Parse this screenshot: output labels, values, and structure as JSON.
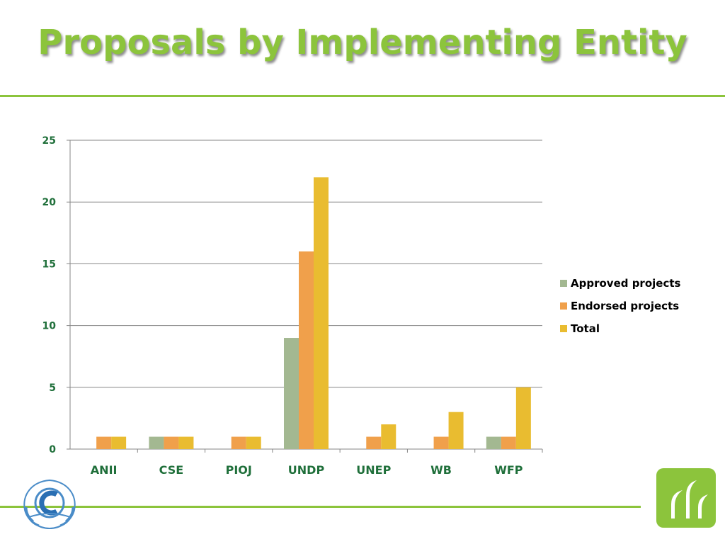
{
  "slide": {
    "title": "Proposals by Implementing Entity",
    "colors": {
      "accent": "#8cc43c"
    }
  },
  "chart_data": {
    "type": "bar",
    "title": "",
    "xlabel": "",
    "ylabel": "",
    "categories": [
      "ANII",
      "CSE",
      "PIOJ",
      "UNDP",
      "UNEP",
      "WB",
      "WFP"
    ],
    "series": [
      {
        "name": "Approved projects",
        "color": "#a3b891",
        "values": [
          0,
          1,
          0,
          9,
          0,
          0,
          1
        ]
      },
      {
        "name": "Endorsed projects",
        "color": "#f0a04b",
        "values": [
          1,
          1,
          1,
          16,
          1,
          1,
          1
        ]
      },
      {
        "name": "Total",
        "color": "#e9bc30",
        "values": [
          1,
          1,
          1,
          22,
          2,
          3,
          5
        ]
      }
    ],
    "ylim": [
      0,
      25
    ],
    "yticks": [
      0,
      5,
      10,
      15,
      20,
      25
    ],
    "grid": true,
    "legend": "right"
  }
}
